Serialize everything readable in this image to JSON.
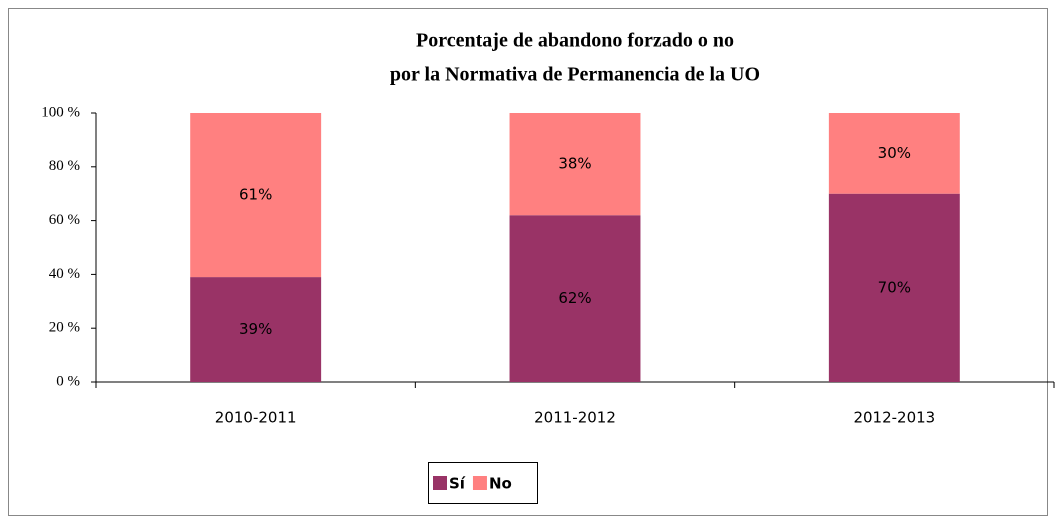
{
  "chart_data": {
    "type": "stacked-bar",
    "title": [
      "Porcentaje de abandono forzado o no",
      "por la Normativa de Permanencia de la UO"
    ],
    "categories": [
      "2010-2011",
      "2011-2012",
      "2012-2013"
    ],
    "series": [
      {
        "name": "Sí",
        "color": "#993366",
        "values": [
          39,
          62,
          70
        ],
        "value_labels": [
          "39%",
          "62%",
          "70%"
        ]
      },
      {
        "name": "No",
        "color": "#ff8080",
        "values": [
          61,
          38,
          30
        ],
        "value_labels": [
          "61%",
          "38%",
          "30%"
        ]
      }
    ],
    "ylim": [
      0,
      100
    ],
    "yticks": [
      {
        "value": 0,
        "label": "0 %"
      },
      {
        "value": 20,
        "label": "20 %"
      },
      {
        "value": 40,
        "label": "40 %"
      },
      {
        "value": 60,
        "label": "60 %"
      },
      {
        "value": 80,
        "label": "80 %"
      },
      {
        "value": 100,
        "label": "100 %"
      }
    ],
    "grid": false,
    "legend": "bottom"
  }
}
